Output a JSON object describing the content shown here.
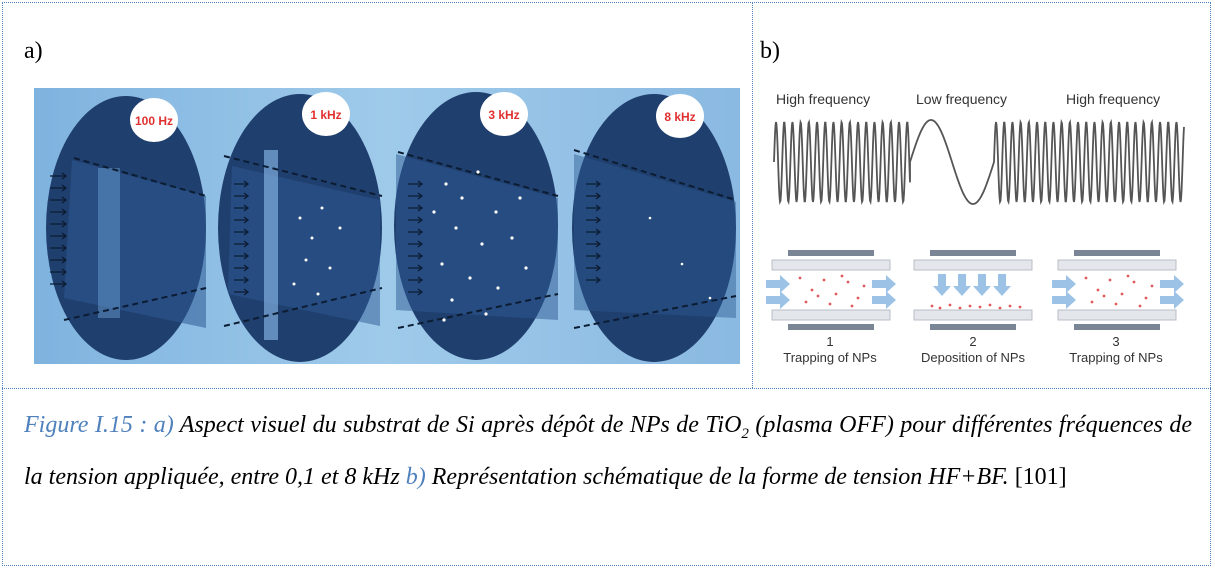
{
  "panels": {
    "a": {
      "label": "a)",
      "frequencies": [
        "100 Hz",
        "1 kHz",
        "3 kHz",
        "8 kHz"
      ]
    },
    "b": {
      "label": "b)",
      "top_labels": [
        "High frequency",
        "Low frequency",
        "High frequency"
      ],
      "stage_numbers": [
        "1",
        "2",
        "3"
      ],
      "stage_labels": [
        "Trapping of NPs",
        "Deposition of NPs",
        "Trapping of NPs"
      ]
    }
  },
  "caption": {
    "figure_label": "Figure I.15 : ",
    "a_marker": "a)",
    "text_1": " Aspect visuel du substrat de Si après dépôt de NPs de TiO",
    "sub": "2",
    "text_2": " (plasma OFF) pour différentes fréquences de la tension appliquée, entre 0,1 et 8 kHz ",
    "b_marker": "b)",
    "text_3": " Représentation schématique de la forme de tension HF+BF.",
    "reference": " [101]"
  },
  "colors": {
    "accent": "#4f81bd",
    "wafer": "#1f3f6e",
    "badge_text": "#e03030"
  }
}
